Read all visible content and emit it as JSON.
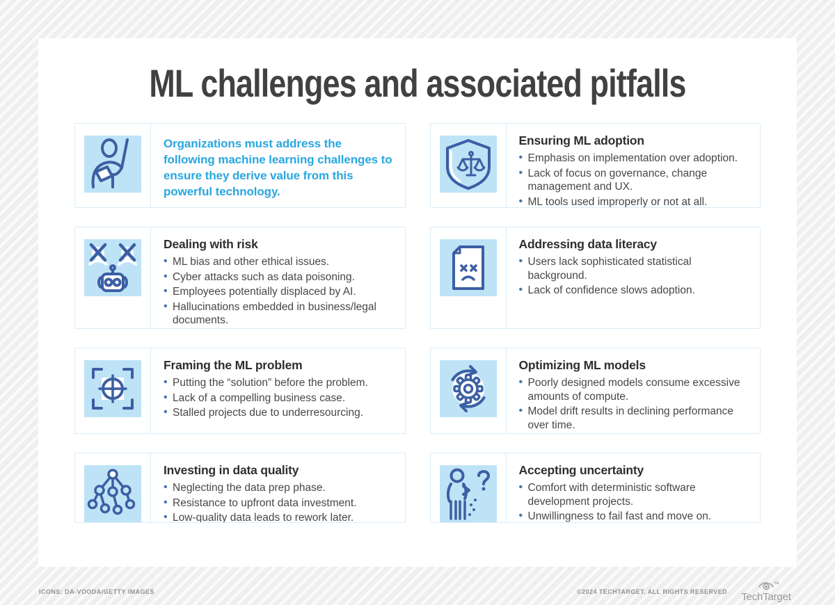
{
  "title": "ML challenges and associated pitfalls",
  "intro": {
    "icon": "presenter-icon",
    "text": "Organizations must address the following machine learning challenges to ensure they derive value from this powerful technology."
  },
  "cards": [
    {
      "icon": "shield-scales-icon",
      "heading": "Ensuring ML adoption",
      "bullets": [
        "Emphasis on implementation over adoption.",
        "Lack of focus on governance, change management and UX.",
        "ML tools used improperly or not at all."
      ]
    },
    {
      "icon": "robot-error-icon",
      "heading": "Dealing with risk",
      "bullets": [
        "ML bias and other ethical issues.",
        "Cyber attacks such as data poisoning.",
        "Employees potentially displaced by AI.",
        "Hallucinations embedded in business/legal documents."
      ]
    },
    {
      "icon": "sad-document-icon",
      "heading": "Addressing data literacy",
      "bullets": [
        "Users lack sophisticated statistical background.",
        "Lack of confidence slows adoption."
      ]
    },
    {
      "icon": "target-frame-icon",
      "heading": "Framing the ML problem",
      "bullets": [
        "Putting the “solution” before the problem.",
        "Lack of a compelling business case.",
        "Stalled projects due to underresourcing."
      ]
    },
    {
      "icon": "gear-sync-icon",
      "heading": "Optimizing ML models",
      "bullets": [
        "Poorly designed models consume excessive amounts of compute.",
        "Model drift results in declining performance over time."
      ]
    },
    {
      "icon": "data-tree-icon",
      "heading": "Investing in data quality",
      "bullets": [
        "Neglecting the data prep phase.",
        "Resistance to upfront data investment.",
        "Low-quality data leads to rework later."
      ]
    },
    {
      "icon": "person-question-icon",
      "heading": "Accepting uncertainty",
      "bullets": [
        "Comfort with deterministic software development projects.",
        "Unwillingness to fail fast and move on."
      ]
    }
  ],
  "footer": {
    "credit": "ICONS: DA-VOODA/GETTY IMAGES",
    "copyright": "©2024 TECHTARGET. ALL RIGHTS RESERVED",
    "brand": "TechTarget"
  },
  "colors": {
    "accent_blue": "#29a7df",
    "icon_bg": "#bee3f6",
    "icon_stroke": "#3b5fa3",
    "bullet_dot": "#4470b3",
    "card_border": "#dbedf9",
    "title_text": "#414144",
    "body_text": "#47474a"
  }
}
